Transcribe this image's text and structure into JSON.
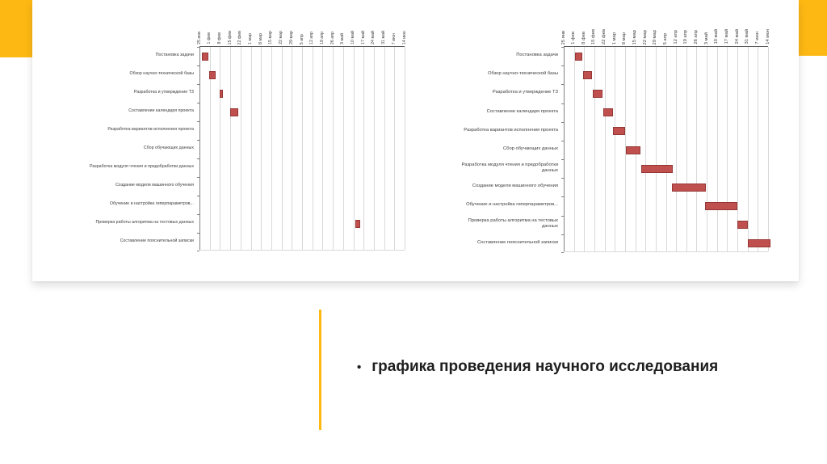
{
  "slide": {
    "accent_color": "#FDB813",
    "caption": {
      "bullet": "•",
      "text": "графика проведения научного исследования"
    }
  },
  "chart_data": [
    {
      "type": "bar",
      "subtype": "gantt-horizontal",
      "title": "",
      "legend": "none",
      "grid": "vertical-weekly",
      "bar_color": "#C0504D",
      "bar_border_color": "#953735",
      "axis": {
        "position": "top",
        "tick_interval_days": 7,
        "unit_note": "start/end given in week-ticks; 0 = 25 янв, 20 = 14 июн",
        "ticks": [
          "25 янв",
          "1 фев",
          "8 фев",
          "15 фев",
          "22 фев",
          "1 мар",
          "8 мар",
          "15 мар",
          "22 мар",
          "29 мар",
          "5 апр",
          "12 апр",
          "19 апр",
          "26 апр",
          "3 май",
          "10 май",
          "17 май",
          "24 май",
          "31 май",
          "7 июн",
          "14 июн"
        ]
      },
      "tasks": [
        {
          "label": "Постановка задачи",
          "start": 0.2,
          "end": 0.9
        },
        {
          "label": "Обзор научно-технической базы",
          "start": 0.95,
          "end": 1.6
        },
        {
          "label": "Разработка и утверждение ТЗ",
          "start": 1.95,
          "end": 2.3
        },
        {
          "label": "Составление календаря проекта",
          "start": 3.0,
          "end": 3.8
        },
        {
          "label": "Разработка вариантов исполнения проекта",
          "start": null,
          "end": null
        },
        {
          "label": "Сбор обучающих данных",
          "start": null,
          "end": null
        },
        {
          "label": "Разработка модуля чтения и предобработки данных",
          "start": null,
          "end": null
        },
        {
          "label": "Создание модели машинного обучения",
          "start": null,
          "end": null
        },
        {
          "label": "Обучение и настройка гиперпараметров...",
          "start": null,
          "end": null
        },
        {
          "label": "Проверка работы алгоритма на тестовых данных",
          "start": 15.2,
          "end": 15.7
        },
        {
          "label": "Составление пояснительной записки",
          "start": null,
          "end": null
        }
      ]
    },
    {
      "type": "bar",
      "subtype": "gantt-horizontal",
      "title": "",
      "legend": "none",
      "grid": "vertical-weekly",
      "bar_color": "#C0504D",
      "bar_border_color": "#953735",
      "axis": {
        "position": "top",
        "tick_interval_days": 7,
        "unit_note": "start/end given in week-ticks; 0 = 25 янв, 20 = 14 июн",
        "ticks": [
          "25 янв",
          "1 фев",
          "8 фев",
          "15 фев",
          "22 фев",
          "1 мар",
          "8 мар",
          "15 мар",
          "22 мар",
          "29 мар",
          "5 апр",
          "12 апр",
          "19 апр",
          "26 апр",
          "3 май",
          "10 май",
          "17 май",
          "24 май",
          "31 май",
          "7 июн",
          "14 июн"
        ]
      },
      "tasks": [
        {
          "label": "Постановка задачи",
          "start": 1.1,
          "end": 1.8
        },
        {
          "label": "Обзор научно-технической базы",
          "start": 1.9,
          "end": 2.75
        },
        {
          "label": "Разработка и утверждение ТЗ",
          "start": 2.85,
          "end": 3.8
        },
        {
          "label": "Составление календаря проекта",
          "start": 3.85,
          "end": 4.8
        },
        {
          "label": "Разработка вариантов исполнения проекта",
          "start": 4.8,
          "end": 6.0
        },
        {
          "label": "Сбор обучающих данных",
          "start": 6.1,
          "end": 7.5
        },
        {
          "label": "Разработка модуля чтения и предобработки данных",
          "start": 7.55,
          "end": 10.7
        },
        {
          "label": "Создание модели машинного обучения",
          "start": 10.6,
          "end": 13.9
        },
        {
          "label": "Обучение и настройка гиперпараметров...",
          "start": 13.8,
          "end": 17.0
        },
        {
          "label": "Проверка работы алгоритма на тестовых данных",
          "start": 17.0,
          "end": 18.0
        },
        {
          "label": "Составление пояснительной записки",
          "start": 18.0,
          "end": 20.2
        }
      ]
    }
  ]
}
